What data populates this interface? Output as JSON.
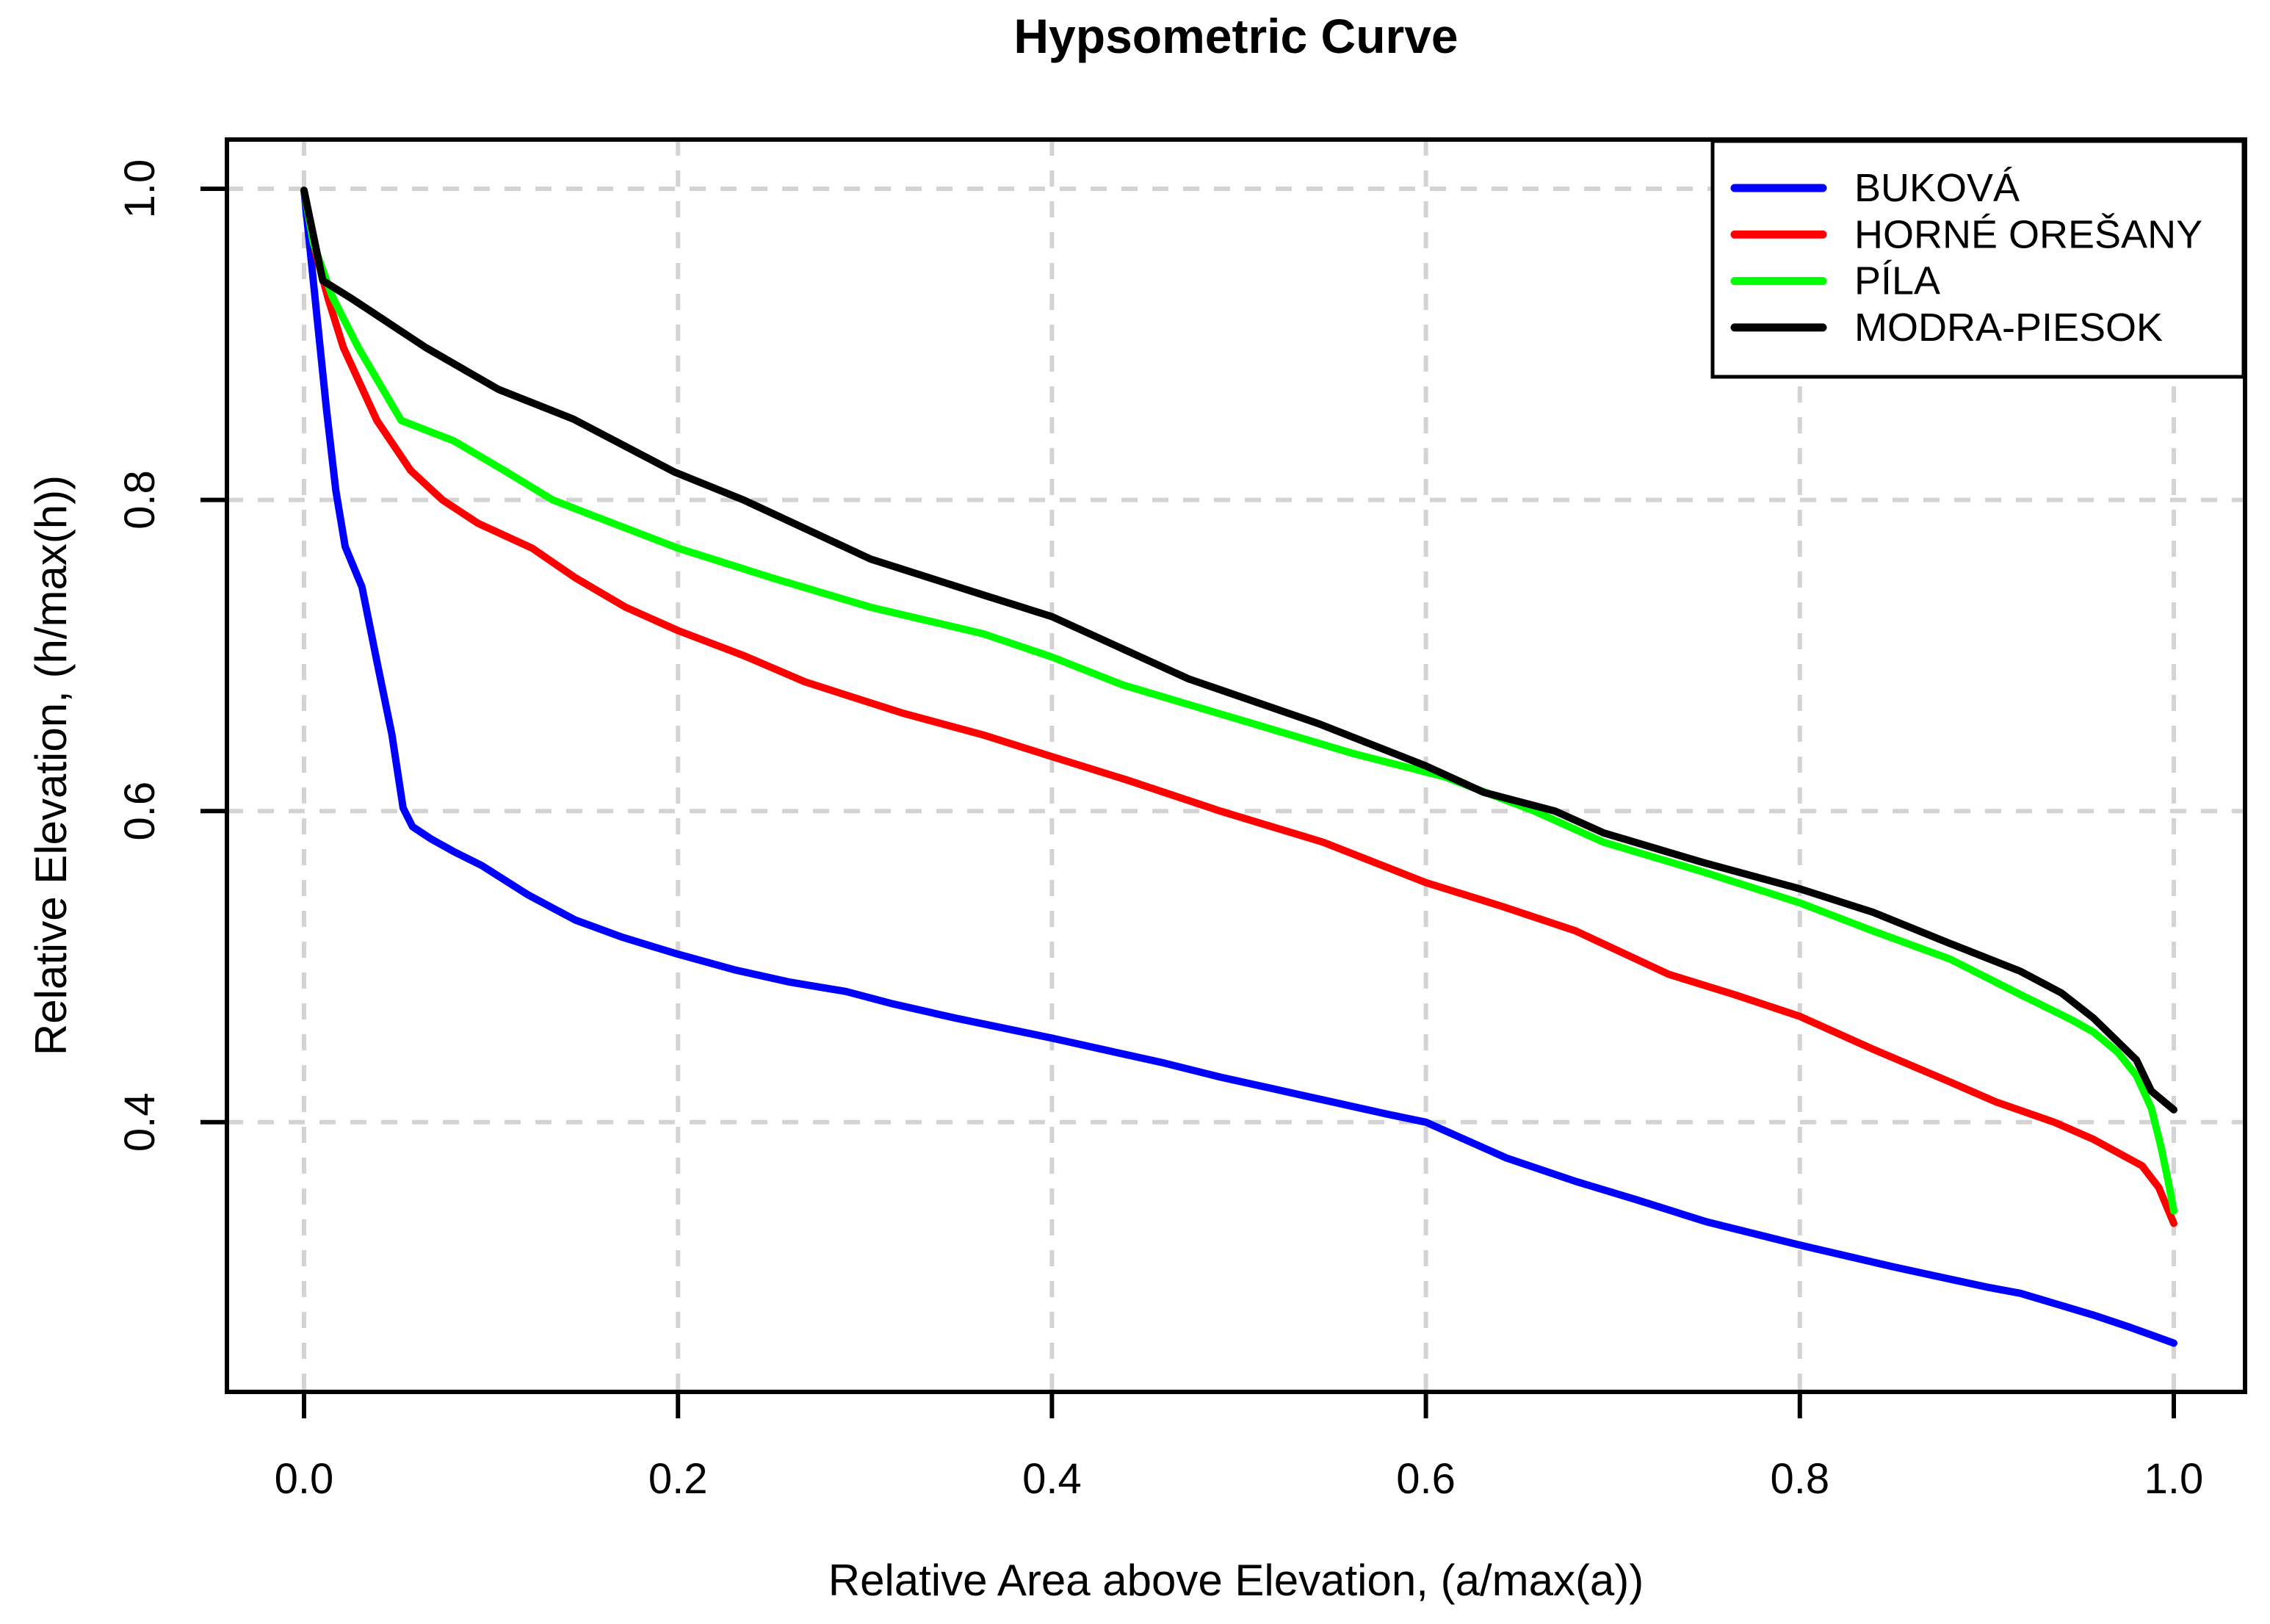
{
  "title": "Hypsometric Curve",
  "chart_data": {
    "type": "line",
    "title": "Hypsometric Curve",
    "xlabel": "Relative Area above Elevation, (a/max(a))",
    "ylabel": "Relative Elevation, (h/max(h))",
    "xlim": [
      0.0,
      1.0
    ],
    "ylim": [
      0.23,
      1.03
    ],
    "x_ticks": [
      0.0,
      0.2,
      0.4,
      0.6,
      0.8,
      1.0
    ],
    "y_ticks": [
      0.4,
      0.6,
      0.8,
      1.0
    ],
    "grid": true,
    "grid_color": "#D3D3D3",
    "grid_style": "dashed",
    "legend_position": "top-right",
    "series": [
      {
        "name": "BUKOVÁ",
        "color": "#0000FF",
        "points": [
          [
            0,
            0.999
          ],
          [
            0.004,
            0.952
          ],
          [
            0.008,
            0.905
          ],
          [
            0.012,
            0.858
          ],
          [
            0.017,
            0.806
          ],
          [
            0.022,
            0.77
          ],
          [
            0.031,
            0.744
          ],
          [
            0.039,
            0.696
          ],
          [
            0.047,
            0.649
          ],
          [
            0.053,
            0.602
          ],
          [
            0.058,
            0.59
          ],
          [
            0.068,
            0.582
          ],
          [
            0.08,
            0.574
          ],
          [
            0.095,
            0.565
          ],
          [
            0.12,
            0.546
          ],
          [
            0.145,
            0.53
          ],
          [
            0.17,
            0.519
          ],
          [
            0.2,
            0.508
          ],
          [
            0.23,
            0.498
          ],
          [
            0.26,
            0.49
          ],
          [
            0.29,
            0.484
          ],
          [
            0.315,
            0.476
          ],
          [
            0.348,
            0.467
          ],
          [
            0.38,
            0.459
          ],
          [
            0.4,
            0.454
          ],
          [
            0.43,
            0.446
          ],
          [
            0.46,
            0.438
          ],
          [
            0.49,
            0.429
          ],
          [
            0.52,
            0.421
          ],
          [
            0.55,
            0.413
          ],
          [
            0.58,
            0.405
          ],
          [
            0.6,
            0.4
          ],
          [
            0.643,
            0.377
          ],
          [
            0.68,
            0.362
          ],
          [
            0.713,
            0.35
          ],
          [
            0.75,
            0.336
          ],
          [
            0.8,
            0.321
          ],
          [
            0.85,
            0.307
          ],
          [
            0.9,
            0.294
          ],
          [
            0.918,
            0.29
          ],
          [
            0.957,
            0.276
          ],
          [
            0.977,
            0.268
          ],
          [
            1.0,
            0.258
          ]
        ]
      },
      {
        "name": "HORNÉ OREŠANY",
        "color": "#FF0000",
        "points": [
          [
            0,
            0.999
          ],
          [
            0.006,
            0.96
          ],
          [
            0.013,
            0.929
          ],
          [
            0.021,
            0.898
          ],
          [
            0.039,
            0.851
          ],
          [
            0.057,
            0.819
          ],
          [
            0.074,
            0.8
          ],
          [
            0.093,
            0.785
          ],
          [
            0.122,
            0.769
          ],
          [
            0.145,
            0.75
          ],
          [
            0.172,
            0.731
          ],
          [
            0.2,
            0.716
          ],
          [
            0.235,
            0.7
          ],
          [
            0.268,
            0.683
          ],
          [
            0.32,
            0.663
          ],
          [
            0.363,
            0.649
          ],
          [
            0.4,
            0.635
          ],
          [
            0.44,
            0.62
          ],
          [
            0.49,
            0.6
          ],
          [
            0.545,
            0.58
          ],
          [
            0.6,
            0.554
          ],
          [
            0.64,
            0.539
          ],
          [
            0.68,
            0.523
          ],
          [
            0.73,
            0.495
          ],
          [
            0.765,
            0.482
          ],
          [
            0.8,
            0.468
          ],
          [
            0.839,
            0.447
          ],
          [
            0.88,
            0.426
          ],
          [
            0.905,
            0.413
          ],
          [
            0.936,
            0.4
          ],
          [
            0.957,
            0.389
          ],
          [
            0.983,
            0.372
          ],
          [
            0.992,
            0.358
          ],
          [
            1.0,
            0.335
          ]
        ]
      },
      {
        "name": "PÍLA",
        "color": "#00FF00",
        "points": [
          [
            0,
            0.999
          ],
          [
            0.005,
            0.965
          ],
          [
            0.015,
            0.931
          ],
          [
            0.029,
            0.898
          ],
          [
            0.052,
            0.851
          ],
          [
            0.08,
            0.838
          ],
          [
            0.107,
            0.819
          ],
          [
            0.133,
            0.8
          ],
          [
            0.15,
            0.792
          ],
          [
            0.2,
            0.769
          ],
          [
            0.25,
            0.75
          ],
          [
            0.303,
            0.731
          ],
          [
            0.363,
            0.714
          ],
          [
            0.4,
            0.699
          ],
          [
            0.438,
            0.681
          ],
          [
            0.508,
            0.656
          ],
          [
            0.561,
            0.637
          ],
          [
            0.61,
            0.622
          ],
          [
            0.658,
            0.6
          ],
          [
            0.695,
            0.58
          ],
          [
            0.748,
            0.561
          ],
          [
            0.8,
            0.541
          ],
          [
            0.839,
            0.523
          ],
          [
            0.88,
            0.505
          ],
          [
            0.918,
            0.482
          ],
          [
            0.945,
            0.466
          ],
          [
            0.957,
            0.458
          ],
          [
            0.97,
            0.445
          ],
          [
            0.98,
            0.43
          ],
          [
            0.988,
            0.409
          ],
          [
            0.993,
            0.385
          ],
          [
            0.997,
            0.362
          ],
          [
            1.0,
            0.343
          ]
        ]
      },
      {
        "name": "MODRA-PIESOK",
        "color": "#000000",
        "points": [
          [
            0,
            0.999
          ],
          [
            0.01,
            0.941
          ],
          [
            0.026,
            0.929
          ],
          [
            0.065,
            0.898
          ],
          [
            0.104,
            0.871
          ],
          [
            0.144,
            0.852
          ],
          [
            0.198,
            0.818
          ],
          [
            0.235,
            0.8
          ],
          [
            0.303,
            0.762
          ],
          [
            0.363,
            0.739
          ],
          [
            0.4,
            0.725
          ],
          [
            0.473,
            0.685
          ],
          [
            0.543,
            0.656
          ],
          [
            0.6,
            0.629
          ],
          [
            0.631,
            0.612
          ],
          [
            0.669,
            0.6
          ],
          [
            0.695,
            0.586
          ],
          [
            0.748,
            0.567
          ],
          [
            0.8,
            0.55
          ],
          [
            0.839,
            0.535
          ],
          [
            0.88,
            0.515
          ],
          [
            0.918,
            0.497
          ],
          [
            0.94,
            0.483
          ],
          [
            0.957,
            0.467
          ],
          [
            0.98,
            0.44
          ],
          [
            0.988,
            0.42
          ],
          [
            1.0,
            0.408
          ]
        ]
      }
    ]
  },
  "legend": {
    "items": [
      {
        "label": "BUKOVÁ",
        "color": "#0000FF"
      },
      {
        "label": "HORNÉ OREŠANY",
        "color": "#FF0000"
      },
      {
        "label": "PÍLA",
        "color": "#00FF00"
      },
      {
        "label": "MODRA-PIESOK",
        "color": "#000000"
      }
    ]
  }
}
